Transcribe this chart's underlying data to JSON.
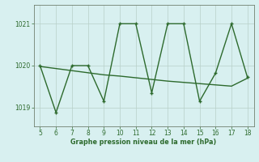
{
  "x": [
    5,
    6,
    7,
    8,
    9,
    10,
    11,
    12,
    13,
    14,
    15,
    16,
    17,
    18
  ],
  "y_main": [
    1020.0,
    1018.88,
    1020.0,
    1020.0,
    1019.15,
    1021.0,
    1021.0,
    1019.35,
    1021.0,
    1021.0,
    1019.15,
    1019.82,
    1021.0,
    1019.72
  ],
  "y_trend": [
    1019.98,
    1019.93,
    1019.88,
    1019.83,
    1019.78,
    1019.75,
    1019.71,
    1019.67,
    1019.63,
    1019.6,
    1019.57,
    1019.54,
    1019.51,
    1019.7
  ],
  "line_color": "#2d6a2d",
  "bg_color": "#d8f0f0",
  "xlabel": "Graphe pression niveau de la mer (hPa)",
  "yticks": [
    1019,
    1020,
    1021
  ],
  "xticks": [
    5,
    6,
    7,
    8,
    9,
    10,
    11,
    12,
    13,
    14,
    15,
    16,
    17,
    18
  ],
  "ylim": [
    1018.55,
    1021.45
  ],
  "xlim": [
    4.6,
    18.4
  ]
}
